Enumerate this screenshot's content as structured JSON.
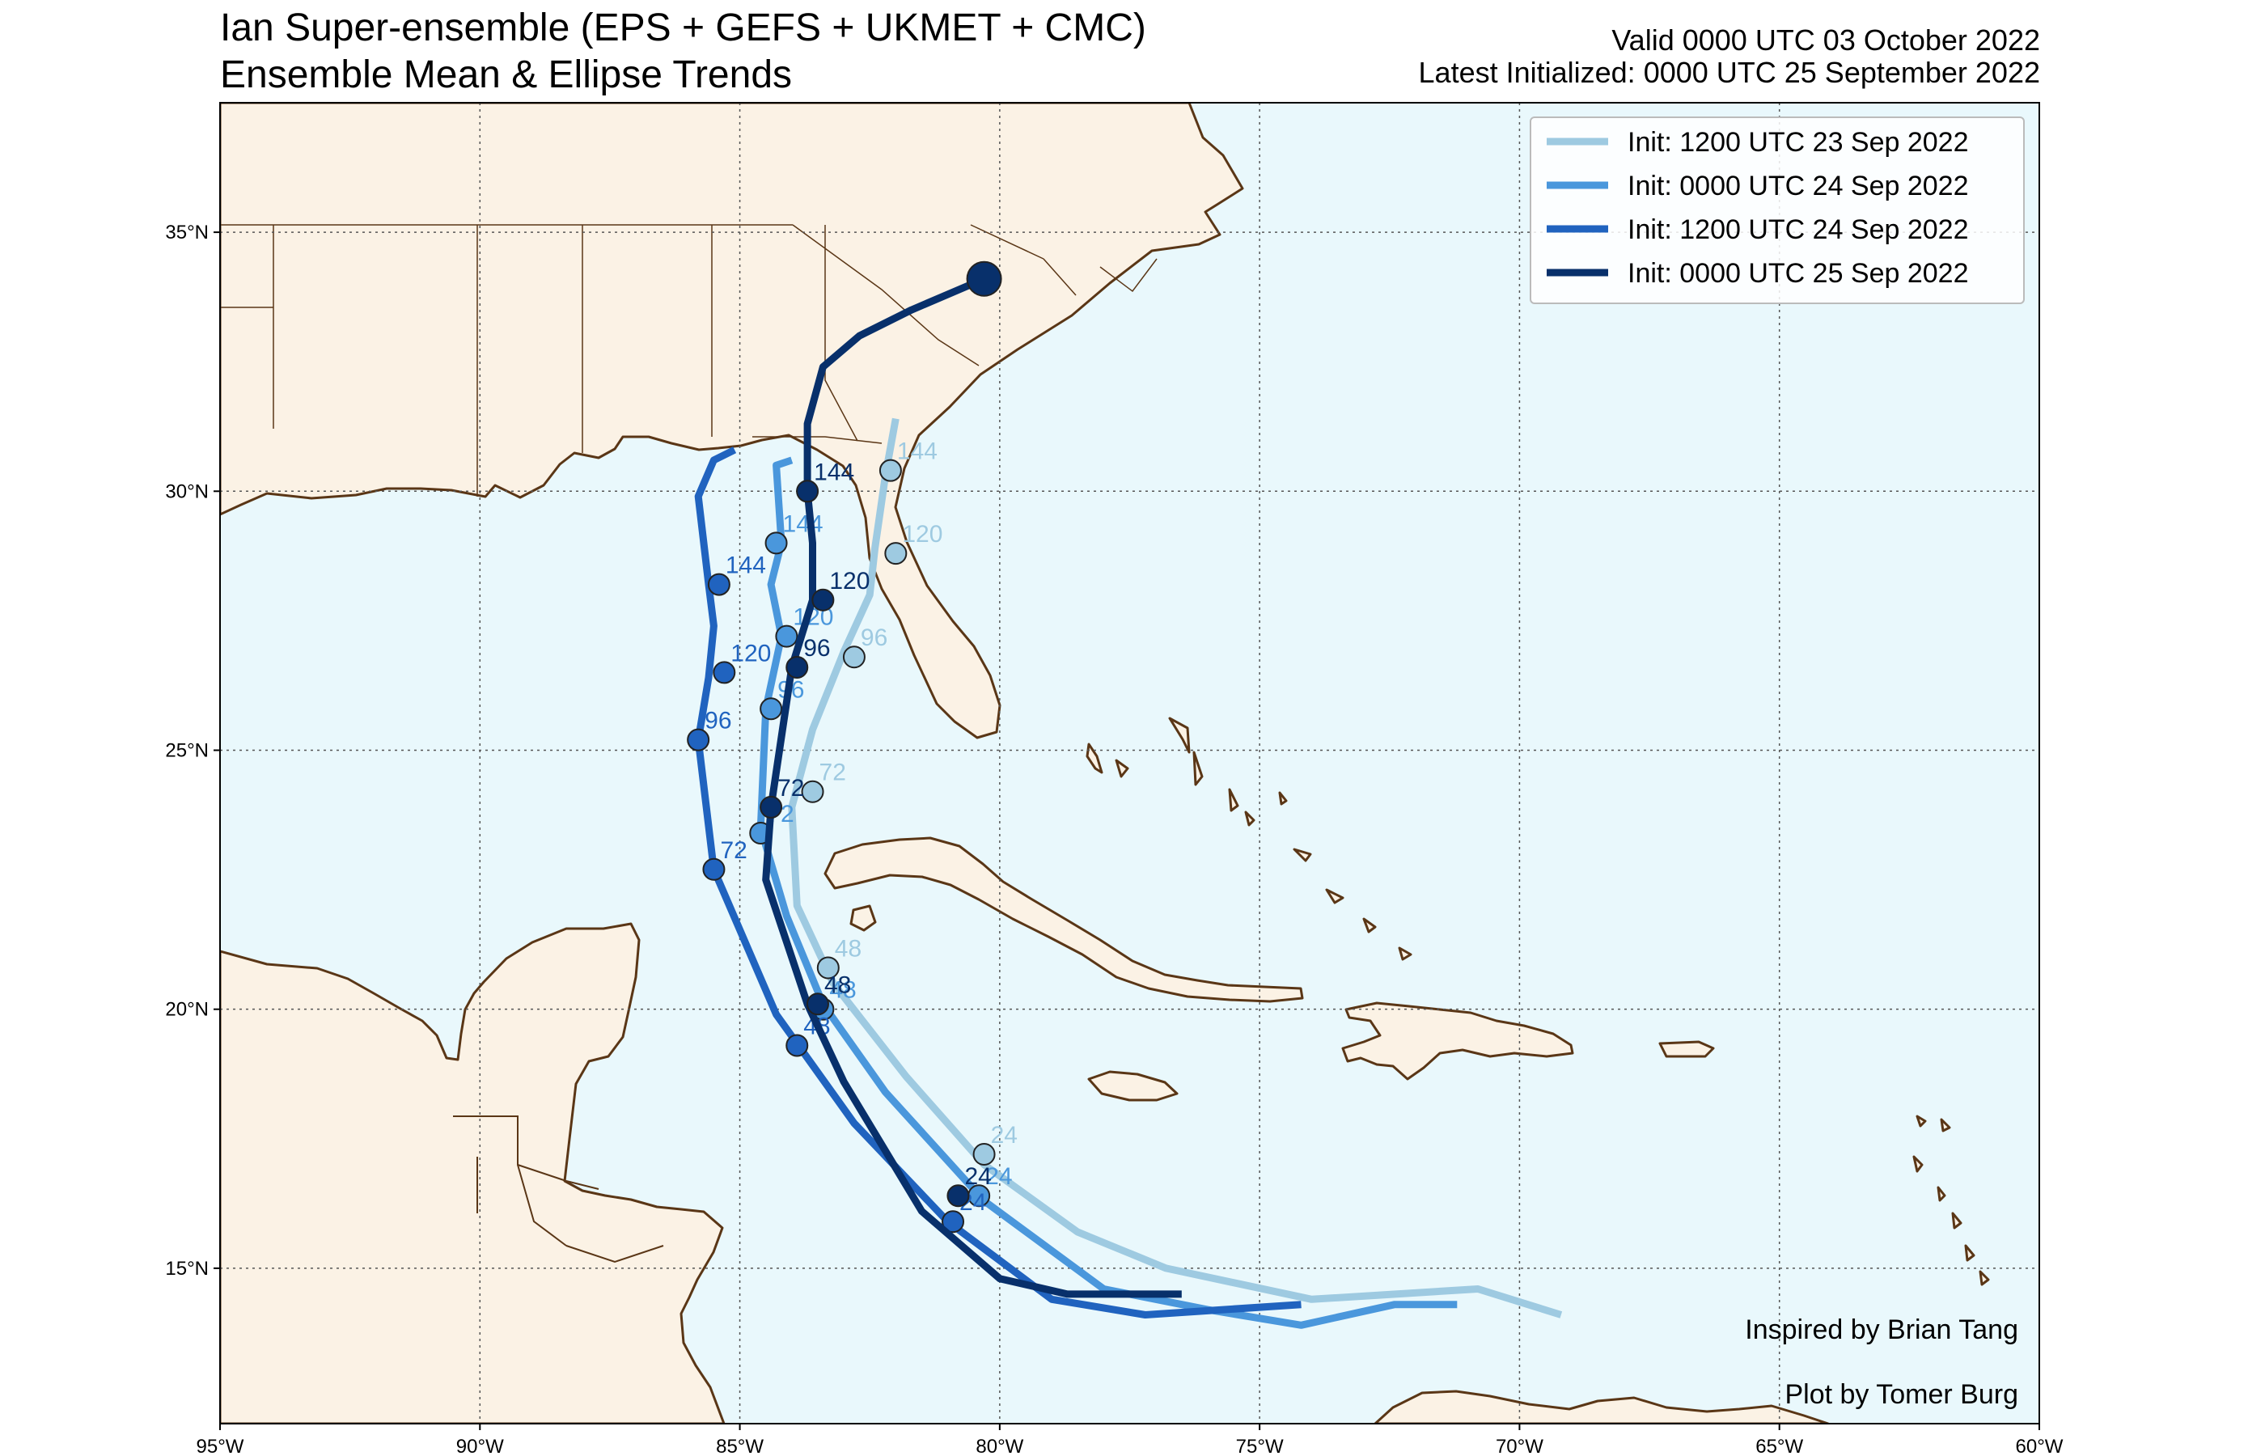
{
  "header": {
    "title_line1": "Ian Super-ensemble (EPS + GEFS + UKMET + CMC)",
    "title_line2": "Ensemble Mean & Ellipse Trends",
    "valid": "Valid 0000 UTC 03 October 2022",
    "latest_init": "Latest Initialized: 0000 UTC 25 September 2022"
  },
  "map": {
    "extent": {
      "lon": [
        -95,
        -60
      ],
      "lat": [
        12,
        37.5
      ]
    },
    "lon_ticks": [
      {
        "value": -95,
        "label": "95°W"
      },
      {
        "value": -90,
        "label": "90°W"
      },
      {
        "value": -85,
        "label": "85°W"
      },
      {
        "value": -80,
        "label": "80°W"
      },
      {
        "value": -75,
        "label": "75°W"
      },
      {
        "value": -70,
        "label": "70°W"
      },
      {
        "value": -65,
        "label": "65°W"
      },
      {
        "value": -60,
        "label": "60°W"
      }
    ],
    "lat_ticks": [
      {
        "value": 15,
        "label": "15°N"
      },
      {
        "value": 20,
        "label": "20°N"
      },
      {
        "value": 25,
        "label": "25°N"
      },
      {
        "value": 30,
        "label": "30°N"
      },
      {
        "value": 35,
        "label": "35°N"
      }
    ],
    "colors": {
      "ocean": "#e9f8fc",
      "land": "#fbf2e5",
      "coast": "#5a3616",
      "grid": "#555555"
    }
  },
  "legend": {
    "position": "top-right"
  },
  "credits": {
    "inspired": "Inspired by Brian Tang",
    "plot": "Plot by Tomer Burg"
  },
  "chart_data": {
    "type": "line",
    "xlabel": "",
    "ylabel": "",
    "xlim": [
      -95,
      -60
    ],
    "ylim": [
      12,
      37.5
    ],
    "series": [
      {
        "name": "Init: 1200 UTC 23 Sep 2022",
        "color": "#9ecae1",
        "lon": [
          -69.2,
          -70.8,
          -74.0,
          -76.8,
          -78.5,
          -80.3,
          -81.8,
          -83.2,
          -83.9,
          -84.0,
          -83.6,
          -83.0,
          -82.5,
          -82.4,
          -82.2,
          -82.0
        ],
        "lat": [
          14.1,
          14.6,
          14.4,
          15.0,
          15.7,
          17.0,
          18.7,
          20.5,
          22.0,
          23.9,
          25.4,
          26.9,
          28.0,
          28.9,
          30.3,
          31.4
        ],
        "markers": [
          {
            "label": "24",
            "lon": -80.3,
            "lat": 17.2
          },
          {
            "label": "48",
            "lon": -83.3,
            "lat": 20.8
          },
          {
            "label": "72",
            "lon": -83.6,
            "lat": 24.2
          },
          {
            "label": "96",
            "lon": -82.8,
            "lat": 26.8
          },
          {
            "label": "120",
            "lon": -82.0,
            "lat": 28.8
          },
          {
            "label": "144",
            "lon": -82.1,
            "lat": 30.4
          }
        ]
      },
      {
        "name": "Init: 0000 UTC 24 Sep 2022",
        "color": "#4a97dc",
        "lon": [
          -71.2,
          -72.4,
          -74.2,
          -76.0,
          -78.0,
          -80.3,
          -82.2,
          -83.4,
          -84.1,
          -84.6,
          -84.5,
          -84.2,
          -84.4,
          -84.2,
          -84.3,
          -84.0
        ],
        "lat": [
          14.3,
          14.3,
          13.9,
          14.2,
          14.6,
          16.3,
          18.4,
          20.1,
          21.8,
          23.5,
          25.8,
          27.2,
          28.2,
          29.0,
          30.5,
          30.6
        ],
        "markers": [
          {
            "label": "24",
            "lon": -80.4,
            "lat": 16.4
          },
          {
            "label": "48",
            "lon": -83.4,
            "lat": 20.0
          },
          {
            "label": "72",
            "lon": -84.6,
            "lat": 23.4
          },
          {
            "label": "96",
            "lon": -84.4,
            "lat": 25.8
          },
          {
            "label": "120",
            "lon": -84.1,
            "lat": 27.2
          },
          {
            "label": "144",
            "lon": -84.3,
            "lat": 29.0
          }
        ]
      },
      {
        "name": "Init: 1200 UTC 24 Sep 2022",
        "color": "#2063bf",
        "lon": [
          -74.2,
          -77.2,
          -79.0,
          -81.0,
          -82.8,
          -84.3,
          -85.5,
          -85.8,
          -85.6,
          -85.5,
          -85.6,
          -85.8,
          -85.5,
          -85.1
        ],
        "lat": [
          14.3,
          14.1,
          14.4,
          15.9,
          17.8,
          19.9,
          22.7,
          25.2,
          26.4,
          27.4,
          28.2,
          29.9,
          30.6,
          30.8
        ],
        "markers": [
          {
            "label": "24",
            "lon": -80.9,
            "lat": 15.9
          },
          {
            "label": "48",
            "lon": -83.9,
            "lat": 19.3
          },
          {
            "label": "72",
            "lon": -85.5,
            "lat": 22.7
          },
          {
            "label": "96",
            "lon": -85.8,
            "lat": 25.2
          },
          {
            "label": "120",
            "lon": -85.3,
            "lat": 26.5
          },
          {
            "label": "144",
            "lon": -85.4,
            "lat": 28.2
          }
        ]
      },
      {
        "name": "Init: 0000 UTC 25 Sep 2022",
        "color": "#08306b",
        "lon": [
          -76.5,
          -78.7,
          -80.0,
          -81.5,
          -83.0,
          -83.7,
          -84.5,
          -84.4,
          -84.0,
          -83.6,
          -83.6,
          -83.7,
          -83.7,
          -83.4,
          -82.7,
          -81.7,
          -80.3
        ],
        "lat": [
          14.5,
          14.5,
          14.8,
          16.1,
          18.6,
          20.1,
          22.5,
          23.9,
          26.6,
          27.9,
          29.0,
          30.0,
          31.3,
          32.4,
          33.0,
          33.5,
          34.1
        ],
        "markers": [
          {
            "label": "24",
            "lon": -80.8,
            "lat": 16.4
          },
          {
            "label": "48",
            "lon": -83.5,
            "lat": 20.1
          },
          {
            "label": "72",
            "lon": -84.4,
            "lat": 23.9
          },
          {
            "label": "96",
            "lon": -83.9,
            "lat": 26.6
          },
          {
            "label": "120",
            "lon": -83.4,
            "lat": 27.9
          },
          {
            "label": "144",
            "lon": -83.7,
            "lat": 30.0
          }
        ],
        "endpoint": {
          "lon": -80.3,
          "lat": 34.1
        }
      }
    ]
  }
}
